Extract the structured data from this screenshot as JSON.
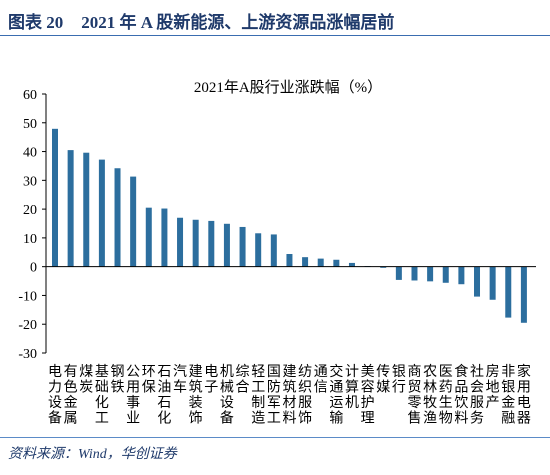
{
  "header": {
    "figure_label": "图表 20",
    "title": "2021 年 A 股新能源、上游资源品涨幅居前"
  },
  "chart_data": {
    "type": "bar",
    "title": "2021年A股行业涨跌幅（%）",
    "xlabel": "",
    "ylabel": "",
    "categories": [
      "电力设备",
      "有色金属",
      "煤炭",
      "基础化工",
      "钢铁",
      "公用事业",
      "环保",
      "石油石化",
      "汽车",
      "建筑装饰",
      "电子",
      "机械设备",
      "综合",
      "轻工制造",
      "国防军工",
      "建筑材料",
      "纺织服饰",
      "通信",
      "交通运输",
      "计算机",
      "美容护理",
      "传媒",
      "银行",
      "商贸零售",
      "农林牧渔",
      "医药生物",
      "食品饮料",
      "社会服务",
      "房地产",
      "非银金融",
      "家用电器"
    ],
    "values": [
      47.9,
      40.5,
      39.6,
      37.2,
      34.2,
      31.3,
      20.5,
      20.2,
      17.0,
      16.3,
      15.9,
      14.9,
      13.8,
      11.6,
      11.2,
      4.4,
      3.3,
      2.8,
      2.4,
      1.3,
      0.2,
      -0.4,
      -4.6,
      -4.8,
      -5.1,
      -5.6,
      -6.1,
      -10.4,
      -11.5,
      -17.7,
      -19.5
    ],
    "ylim": [
      -30,
      60
    ],
    "yticks": [
      60,
      50,
      40,
      30,
      20,
      10,
      0,
      -10,
      -20,
      -30
    ],
    "grid": false,
    "legend": "none",
    "bar_color": "#2C6E9E",
    "axis_color": "#000000"
  },
  "source": "资料来源：Wind，华创证券"
}
